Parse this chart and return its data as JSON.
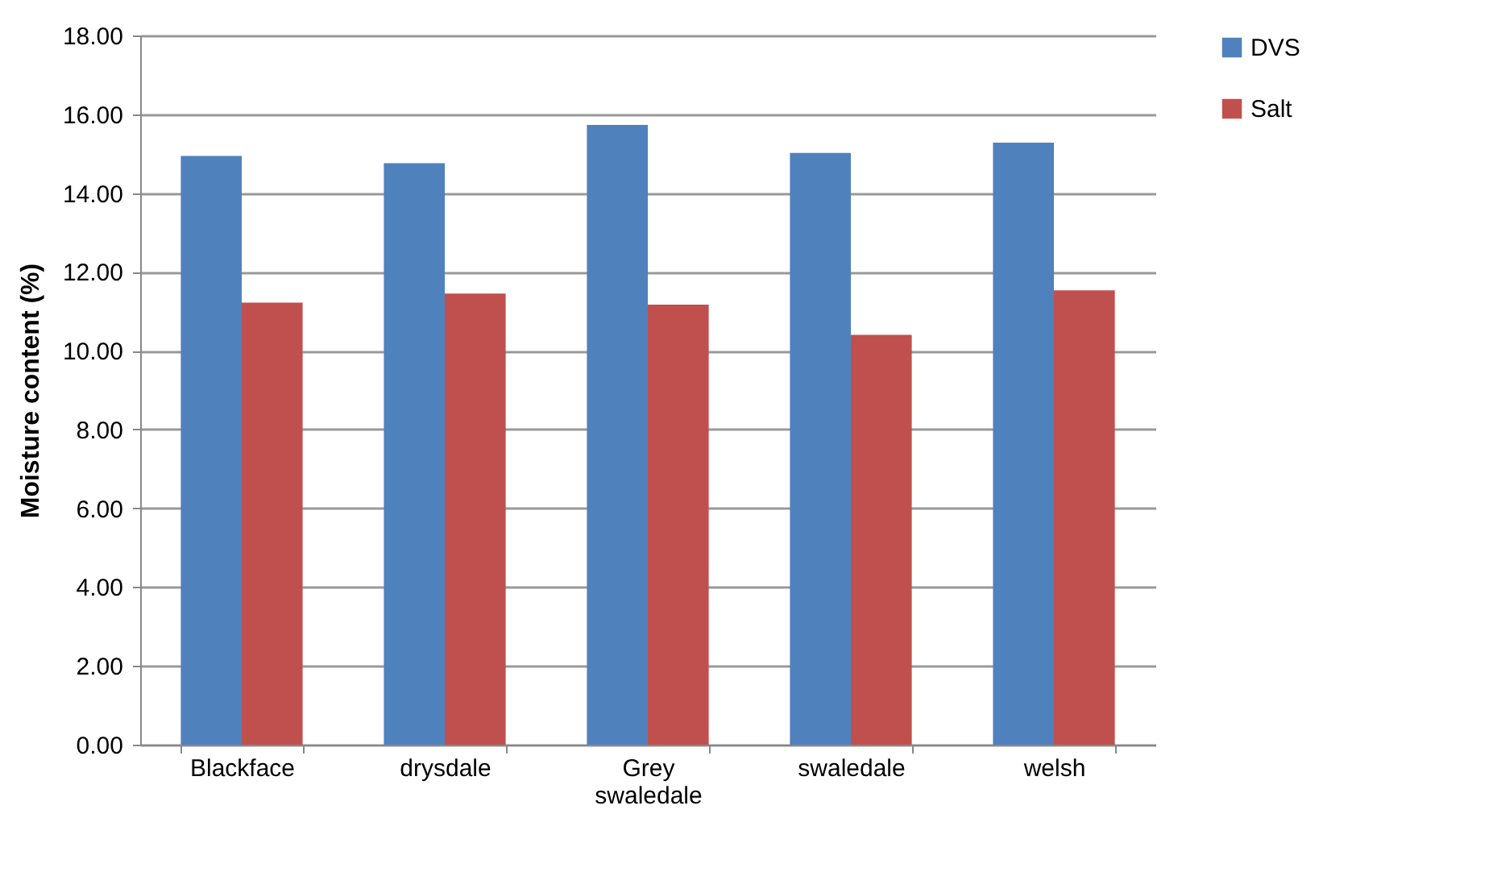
{
  "chart_data": {
    "type": "bar",
    "ylabel": "Moisture content (%)",
    "categories": [
      "Blackface",
      "drysdale",
      "Grey swaledale",
      "swaledale",
      "welsh"
    ],
    "series": [
      {
        "name": "DVS",
        "color": "#4f81bd",
        "values": [
          14.94,
          14.76,
          15.73,
          15.02,
          15.28
        ]
      },
      {
        "name": "Salt",
        "color": "#c0504d",
        "values": [
          11.22,
          11.45,
          11.17,
          10.4,
          11.53
        ]
      }
    ],
    "ylim": [
      0,
      18
    ],
    "yticks": [
      {
        "value": 0,
        "label": "0.00"
      },
      {
        "value": 2,
        "label": "2.00"
      },
      {
        "value": 4,
        "label": "4.00"
      },
      {
        "value": 6,
        "label": "6.00"
      },
      {
        "value": 8,
        "label": "8.00"
      },
      {
        "value": 10,
        "label": "10.00"
      },
      {
        "value": 12,
        "label": "12.00"
      },
      {
        "value": 14,
        "label": "14.00"
      },
      {
        "value": 16,
        "label": "16.00"
      },
      {
        "value": 18,
        "label": "18.00"
      }
    ],
    "grid": "y",
    "legend": "right"
  }
}
